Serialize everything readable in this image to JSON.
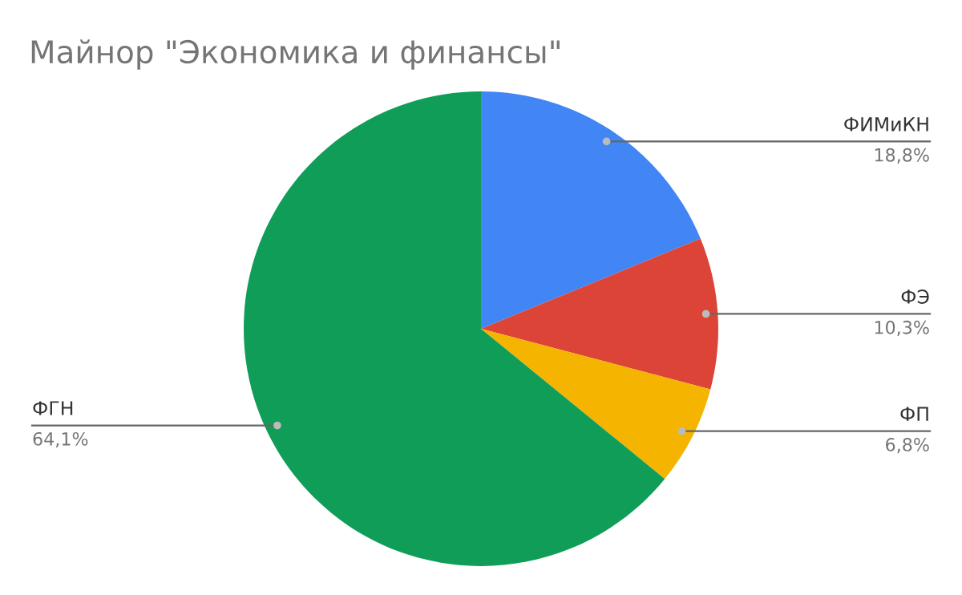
{
  "chart_data": {
    "type": "pie",
    "title": "Майнор \"Экономика и финансы\"",
    "categories": [
      "ФИМиКН",
      "ФЭ",
      "ФП",
      "ФГН"
    ],
    "values": [
      18.8,
      10.3,
      6.8,
      64.1
    ],
    "colors": [
      "#4285f4",
      "#db4437",
      "#f4b400",
      "#0f9d58"
    ],
    "value_labels": [
      "18,8%",
      "10,3%",
      "6,8%",
      "64,1%"
    ],
    "legend": false
  }
}
